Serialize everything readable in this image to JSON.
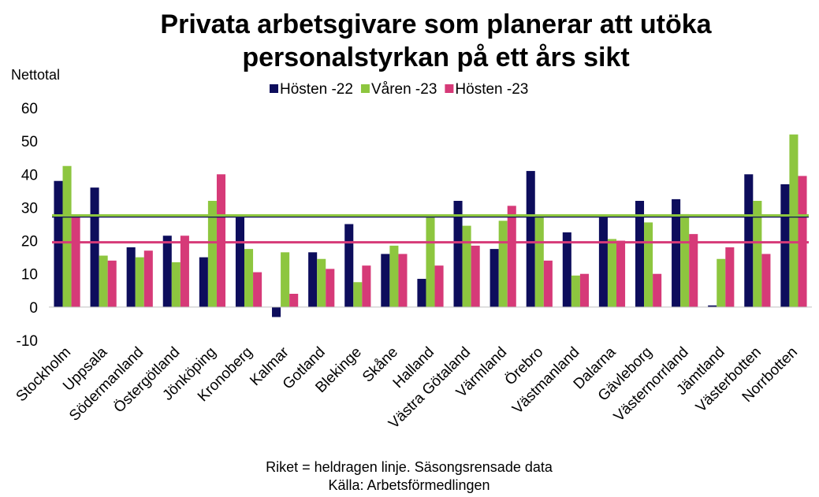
{
  "chart_data": {
    "type": "bar",
    "title": [
      "Privata arbetsgivare som planerar att utöka",
      "personalstyrkan på ett års sikt"
    ],
    "y_label": "Nettotal",
    "notes": [
      "Riket = heldragen linje. Säsongsrensade data",
      "Källa: Arbetsförmedlingen"
    ],
    "categories": [
      "Stockholm",
      "Uppsala",
      "Södermanland",
      "Östergötland",
      "Jönköping",
      "Kronoberg",
      "Kalmar",
      "Gotland",
      "Blekinge",
      "Skåne",
      "Halland",
      "Västra Götaland",
      "Värmland",
      "Örebro",
      "Västmanland",
      "Dalarna",
      "Gävleborg",
      "Västernorrland",
      "Jämtland",
      "Västerbotten",
      "Norrbotten"
    ],
    "series": [
      {
        "name": "Hösten -22",
        "color": "#0d0d5c",
        "riket": 27.3,
        "values": [
          38,
          36,
          18,
          21.5,
          15,
          27,
          -3,
          16.5,
          25,
          16,
          8.5,
          32,
          17.5,
          41,
          22.5,
          27,
          32,
          32.5,
          0.5,
          40,
          37
        ]
      },
      {
        "name": "Våren -23",
        "color": "#8dc63f",
        "riket": 27.6,
        "values": [
          42.5,
          15.5,
          15,
          13.5,
          32,
          17.5,
          16.5,
          14.5,
          7.5,
          18.5,
          27,
          24.5,
          26,
          27,
          9.5,
          20.5,
          25.5,
          28,
          14.5,
          32,
          52
        ]
      },
      {
        "name": "Hösten -23",
        "color": "#d63a78",
        "riket": 19.5,
        "values": [
          27,
          14,
          17,
          21.5,
          40,
          10.5,
          4,
          11.5,
          12.5,
          16,
          12.5,
          18.5,
          30.5,
          14,
          10,
          20,
          10,
          22,
          18,
          16,
          39.5
        ]
      }
    ],
    "ylim": [
      -10,
      60
    ],
    "yticks": [
      -10,
      0,
      10,
      20,
      30,
      40,
      50,
      60
    ]
  }
}
